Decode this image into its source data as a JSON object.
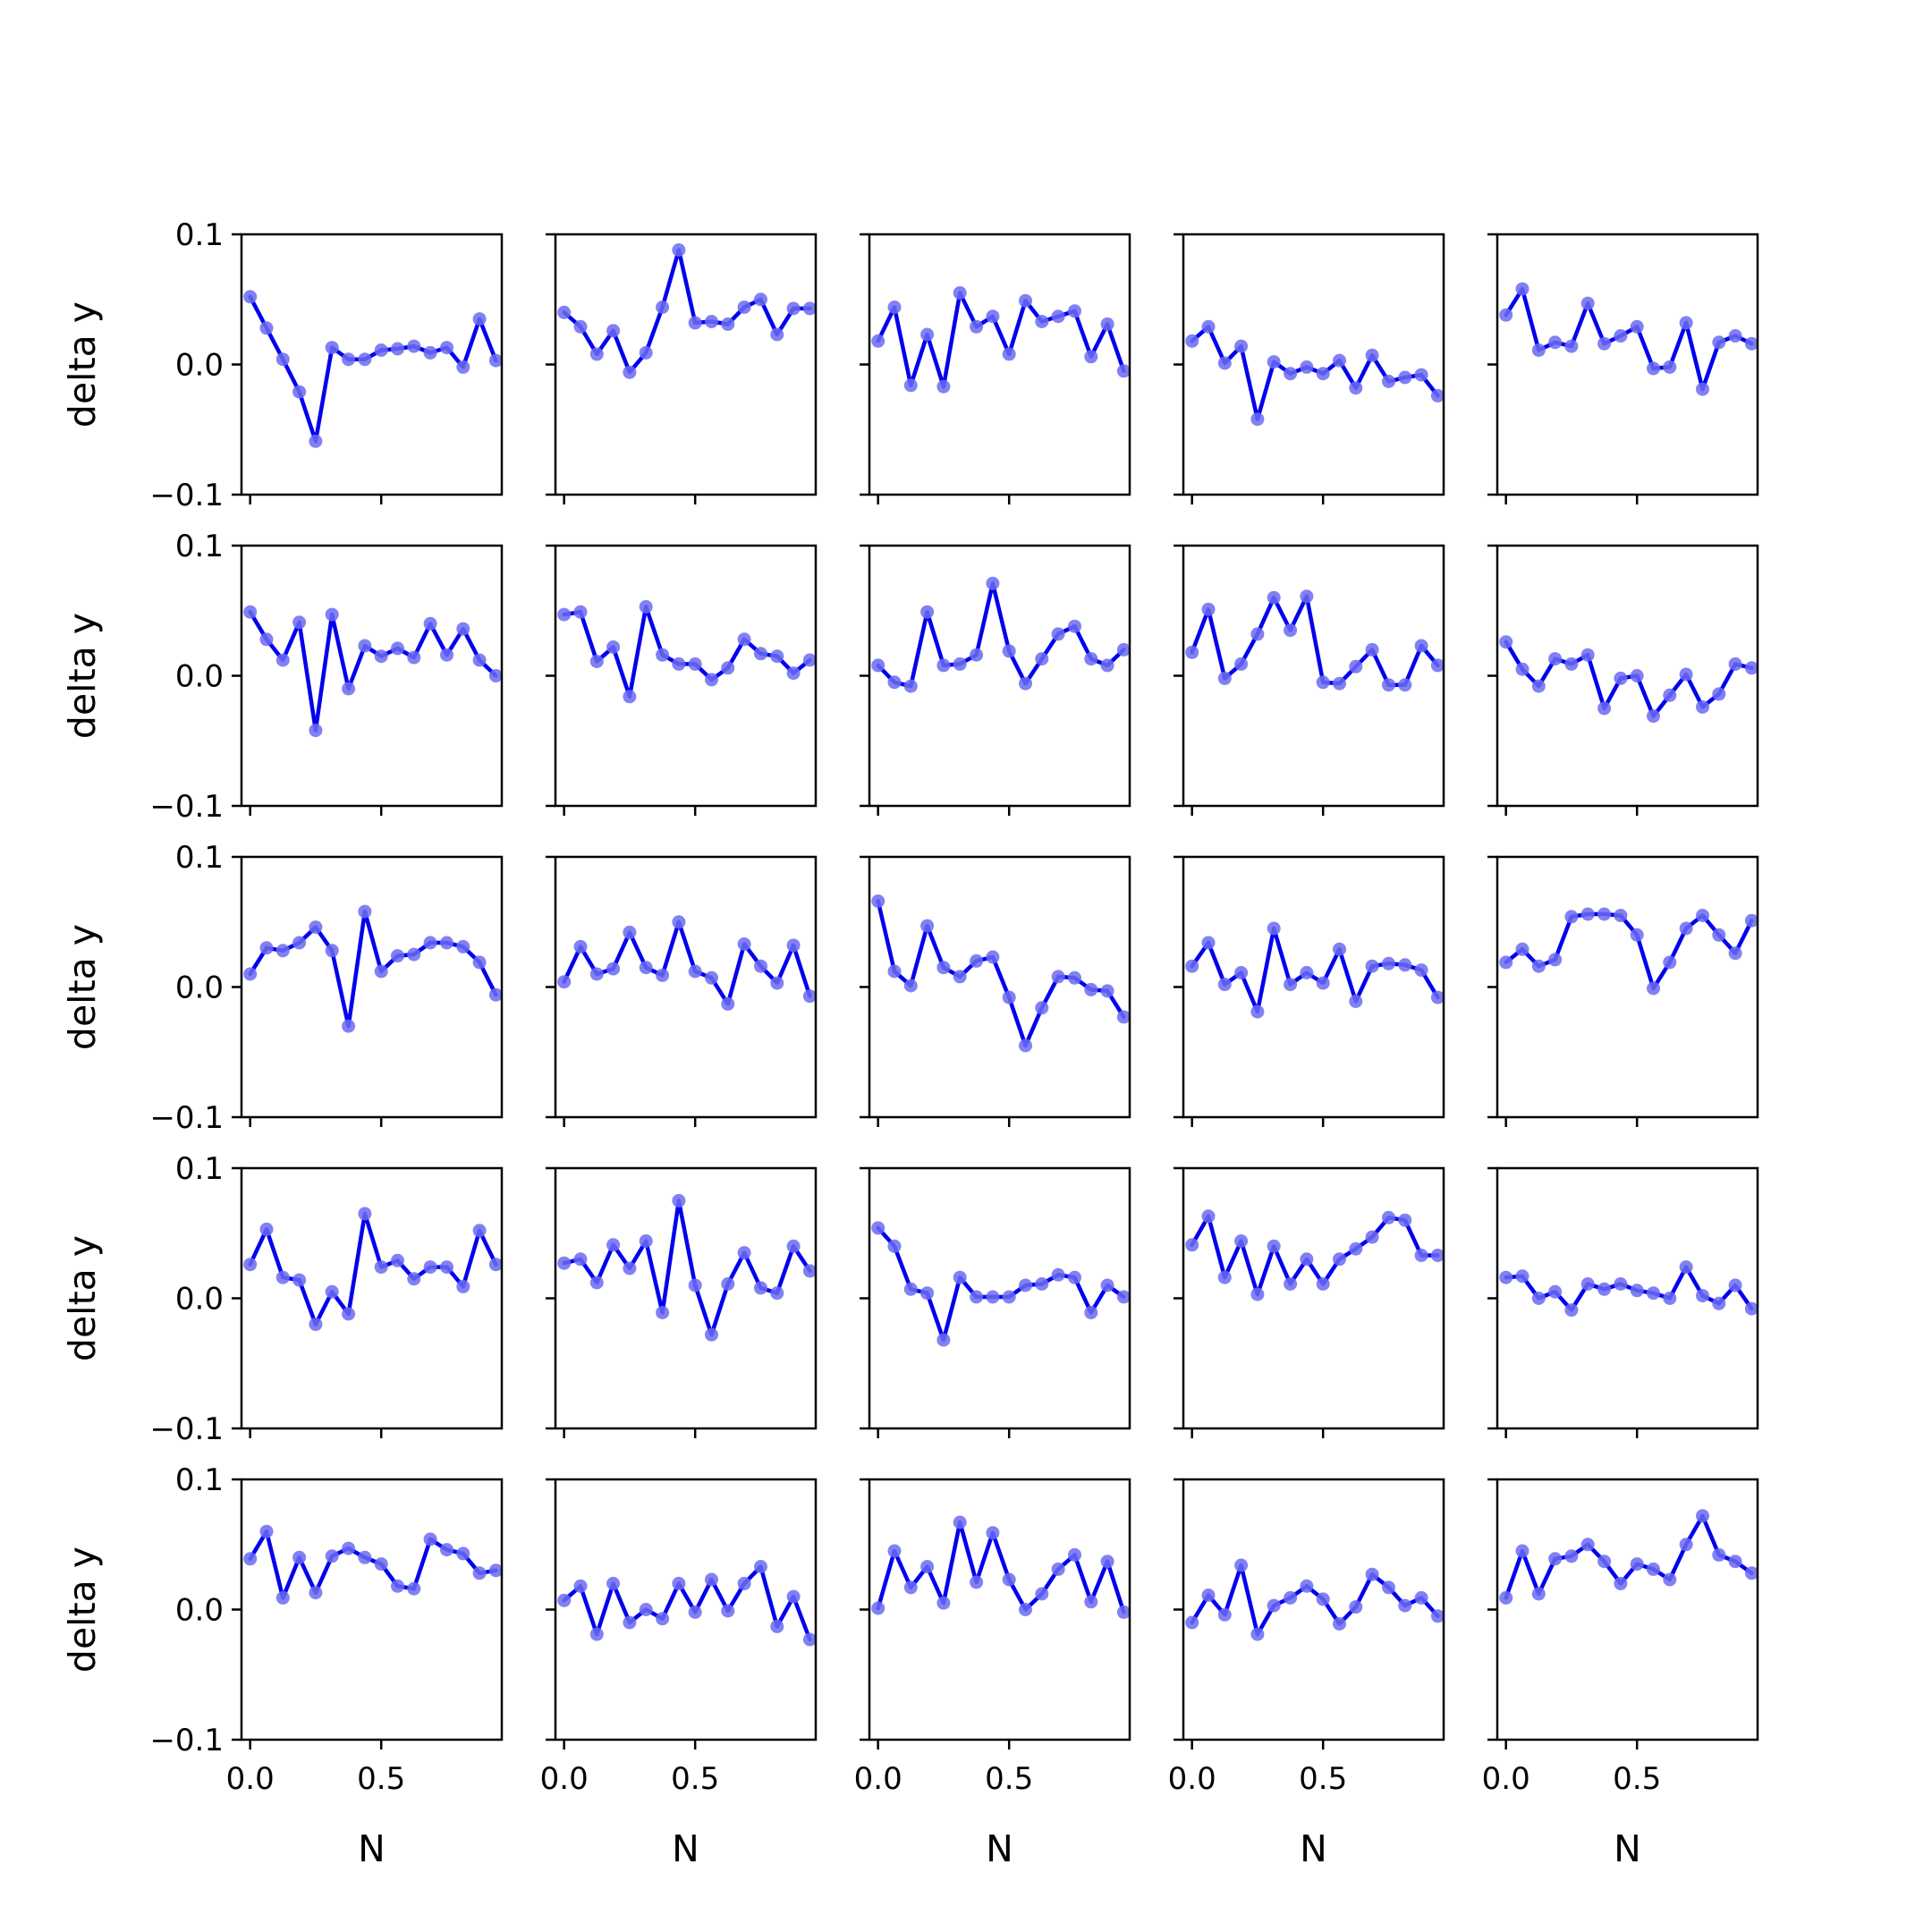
{
  "figure": {
    "colors": {
      "line": "#0000ee",
      "marker": "#6b6bf2",
      "axes": "#000000",
      "background": "#ffffff"
    },
    "rows": 5,
    "cols": 5
  },
  "chart_data": {
    "type": "line",
    "grid": false,
    "xlabel": "N",
    "ylabel": "delta y",
    "xlim": [
      -0.033,
      0.96
    ],
    "ylim": [
      -0.1,
      0.1
    ],
    "xticks": [
      0.0,
      0.5
    ],
    "xtick_labels": [
      "0.0",
      "0.5"
    ],
    "yticks": [
      0.1,
      0.0,
      -0.1
    ],
    "ytick_labels": [
      "0.1",
      "0.0",
      "−0.1"
    ],
    "x": [
      0.0,
      0.0625,
      0.125,
      0.1875,
      0.25,
      0.3125,
      0.375,
      0.4375,
      0.5,
      0.5625,
      0.625,
      0.6875,
      0.75,
      0.8125,
      0.875,
      0.9375
    ],
    "panels": [
      {
        "values": [
          0.052,
          0.028,
          0.004,
          -0.021,
          -0.059,
          0.013,
          0.004,
          0.004,
          0.011,
          0.012,
          0.014,
          0.009,
          0.013,
          -0.002,
          0.035,
          0.003
        ]
      },
      {
        "values": [
          0.04,
          0.029,
          0.008,
          0.026,
          -0.006,
          0.009,
          0.044,
          0.088,
          0.032,
          0.033,
          0.031,
          0.044,
          0.05,
          0.023,
          0.043,
          0.043
        ]
      },
      {
        "values": [
          0.018,
          0.044,
          -0.016,
          0.023,
          -0.017,
          0.055,
          0.029,
          0.037,
          0.008,
          0.049,
          0.033,
          0.037,
          0.041,
          0.006,
          0.031,
          -0.005
        ]
      },
      {
        "values": [
          0.018,
          0.029,
          0.001,
          0.014,
          -0.042,
          0.002,
          -0.007,
          -0.002,
          -0.007,
          0.003,
          -0.018,
          0.007,
          -0.013,
          -0.01,
          -0.008,
          -0.024
        ]
      },
      {
        "values": [
          0.038,
          0.058,
          0.011,
          0.017,
          0.014,
          0.047,
          0.016,
          0.022,
          0.029,
          -0.003,
          -0.002,
          0.032,
          -0.019,
          0.017,
          0.022,
          0.016
        ]
      },
      {
        "values": [
          0.049,
          0.028,
          0.012,
          0.041,
          -0.042,
          0.047,
          -0.01,
          0.023,
          0.015,
          0.021,
          0.014,
          0.04,
          0.016,
          0.036,
          0.012,
          0.0
        ]
      },
      {
        "values": [
          0.047,
          0.049,
          0.011,
          0.022,
          -0.016,
          0.053,
          0.016,
          0.009,
          0.009,
          -0.003,
          0.006,
          0.028,
          0.017,
          0.015,
          0.002,
          0.012
        ]
      },
      {
        "values": [
          0.008,
          -0.005,
          -0.008,
          0.049,
          0.008,
          0.009,
          0.016,
          0.071,
          0.019,
          -0.006,
          0.013,
          0.032,
          0.038,
          0.013,
          0.008,
          0.02
        ]
      },
      {
        "values": [
          0.018,
          0.051,
          -0.002,
          0.009,
          0.032,
          0.06,
          0.035,
          0.061,
          -0.005,
          -0.006,
          0.007,
          0.02,
          -0.007,
          -0.007,
          0.023,
          0.008
        ]
      },
      {
        "values": [
          0.026,
          0.005,
          -0.008,
          0.013,
          0.009,
          0.016,
          -0.025,
          -0.002,
          0.0,
          -0.031,
          -0.015,
          0.001,
          -0.024,
          -0.014,
          0.009,
          0.006
        ]
      },
      {
        "values": [
          0.01,
          0.03,
          0.028,
          0.034,
          0.046,
          0.028,
          -0.03,
          0.058,
          0.012,
          0.024,
          0.025,
          0.034,
          0.034,
          0.031,
          0.019,
          -0.006
        ]
      },
      {
        "values": [
          0.004,
          0.031,
          0.01,
          0.014,
          0.042,
          0.015,
          0.009,
          0.05,
          0.012,
          0.007,
          -0.013,
          0.033,
          0.016,
          0.003,
          0.032,
          -0.007
        ]
      },
      {
        "values": [
          0.066,
          0.012,
          0.001,
          0.047,
          0.015,
          0.008,
          0.02,
          0.023,
          -0.008,
          -0.045,
          -0.016,
          0.008,
          0.007,
          -0.002,
          -0.003,
          -0.023
        ]
      },
      {
        "values": [
          0.016,
          0.034,
          0.002,
          0.011,
          -0.019,
          0.045,
          0.002,
          0.011,
          0.003,
          0.029,
          -0.011,
          0.016,
          0.018,
          0.017,
          0.013,
          -0.008
        ]
      },
      {
        "values": [
          0.019,
          0.029,
          0.016,
          0.021,
          0.054,
          0.056,
          0.056,
          0.055,
          0.04,
          -0.001,
          0.019,
          0.045,
          0.055,
          0.04,
          0.026,
          0.051
        ]
      },
      {
        "values": [
          0.026,
          0.053,
          0.016,
          0.014,
          -0.02,
          0.005,
          -0.012,
          0.065,
          0.024,
          0.029,
          0.015,
          0.024,
          0.024,
          0.009,
          0.052,
          0.026
        ]
      },
      {
        "values": [
          0.027,
          0.03,
          0.012,
          0.041,
          0.023,
          0.044,
          -0.011,
          0.075,
          0.01,
          -0.028,
          0.011,
          0.035,
          0.008,
          0.004,
          0.04,
          0.021
        ]
      },
      {
        "values": [
          0.054,
          0.04,
          0.007,
          0.004,
          -0.032,
          0.016,
          0.001,
          0.001,
          0.001,
          0.01,
          0.011,
          0.018,
          0.016,
          -0.011,
          0.01,
          0.001
        ]
      },
      {
        "values": [
          0.041,
          0.063,
          0.016,
          0.044,
          0.003,
          0.04,
          0.011,
          0.03,
          0.011,
          0.03,
          0.038,
          0.047,
          0.062,
          0.06,
          0.033,
          0.033
        ]
      },
      {
        "values": [
          0.016,
          0.017,
          0.0,
          0.005,
          -0.009,
          0.011,
          0.007,
          0.011,
          0.006,
          0.004,
          0.0,
          0.024,
          0.002,
          -0.004,
          0.01,
          -0.008
        ]
      },
      {
        "values": [
          0.039,
          0.06,
          0.009,
          0.04,
          0.013,
          0.041,
          0.047,
          0.04,
          0.035,
          0.018,
          0.016,
          0.054,
          0.046,
          0.043,
          0.028,
          0.03
        ]
      },
      {
        "values": [
          0.007,
          0.018,
          -0.019,
          0.02,
          -0.01,
          0.0,
          -0.007,
          0.02,
          -0.002,
          0.023,
          -0.001,
          0.02,
          0.033,
          -0.013,
          0.01,
          -0.023
        ]
      },
      {
        "values": [
          0.001,
          0.045,
          0.017,
          0.033,
          0.005,
          0.067,
          0.021,
          0.059,
          0.023,
          0.0,
          0.012,
          0.031,
          0.042,
          0.006,
          0.037,
          -0.002
        ]
      },
      {
        "values": [
          -0.01,
          0.011,
          -0.004,
          0.034,
          -0.019,
          0.003,
          0.009,
          0.018,
          0.008,
          -0.011,
          0.002,
          0.027,
          0.017,
          0.003,
          0.009,
          -0.005
        ]
      },
      {
        "values": [
          0.009,
          0.045,
          0.012,
          0.039,
          0.041,
          0.05,
          0.037,
          0.02,
          0.035,
          0.031,
          0.023,
          0.05,
          0.072,
          0.042,
          0.037,
          0.028
        ]
      }
    ]
  }
}
